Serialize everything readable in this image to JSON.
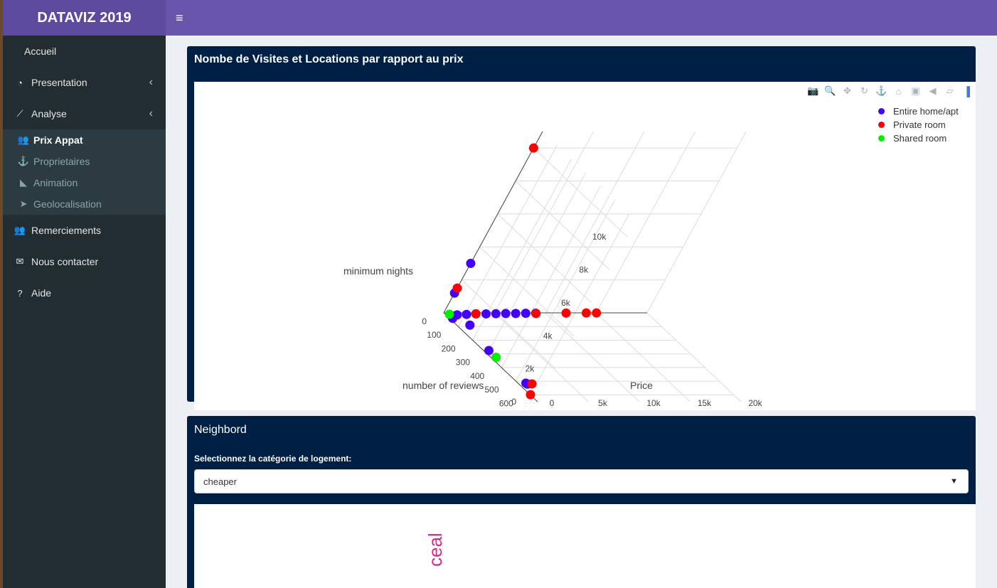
{
  "app": {
    "title": "DATAVIZ 2019"
  },
  "sidebar": {
    "items": [
      {
        "label": "Accueil",
        "icon": "apple-icon"
      },
      {
        "label": "Presentation",
        "icon": "dashboard-icon"
      },
      {
        "label": "Analyse",
        "icon": "line-chart-icon"
      },
      {
        "label": "Remerciements",
        "icon": "users-icon"
      },
      {
        "label": "Nous contacter",
        "icon": "envelope-icon"
      },
      {
        "label": "Aide",
        "icon": "question-icon"
      }
    ],
    "subitems": [
      {
        "label": "Prix Appat",
        "icon": "users-icon",
        "active": true
      },
      {
        "label": "Proprietaires",
        "icon": "anchor-icon"
      },
      {
        "label": "Animation",
        "icon": "area-chart-icon"
      },
      {
        "label": "Geolocalisation",
        "icon": "location-arrow-icon"
      }
    ]
  },
  "box1": {
    "title": "Nombe de Visites et Locations par rapport au prix"
  },
  "chart_data": {
    "type": "scatter",
    "title": "",
    "axes": {
      "x": {
        "label": "Price",
        "ticks": [
          "0",
          "5k",
          "10k",
          "15k",
          "20k"
        ]
      },
      "y": {
        "label": "number of reviews",
        "ticks": [
          "0",
          "100",
          "200",
          "300",
          "400",
          "500",
          "600"
        ]
      },
      "z": {
        "label": "minimum nights",
        "ticks": [
          "0",
          "2k",
          "4k",
          "6k",
          "8k",
          "10k"
        ]
      }
    },
    "series": [
      {
        "name": "Entire home/apt",
        "color": "#4400ff",
        "points": [
          [
            0,
            0,
            3000
          ],
          [
            0,
            0,
            1200
          ],
          [
            100,
            50,
            80
          ],
          [
            200,
            40,
            60
          ],
          [
            500,
            30,
            50
          ],
          [
            1000,
            20,
            40
          ],
          [
            2000,
            15,
            30
          ],
          [
            3000,
            10,
            25
          ],
          [
            4000,
            10,
            20
          ],
          [
            5000,
            8,
            15
          ],
          [
            6000,
            6,
            10
          ],
          [
            7000,
            5,
            5
          ],
          [
            8000,
            4,
            5
          ],
          [
            9000,
            3,
            3
          ],
          [
            0,
            150,
            500
          ],
          [
            0,
            300,
            200
          ],
          [
            0,
            550,
            300
          ],
          [
            0,
            560,
            320
          ]
        ]
      },
      {
        "name": "Private room",
        "color": "#ff0000",
        "points": [
          [
            0,
            0,
            10000
          ],
          [
            0,
            0,
            1500
          ],
          [
            3000,
            10,
            20
          ],
          [
            9000,
            5,
            3
          ],
          [
            12000,
            2,
            2
          ],
          [
            14000,
            1,
            1
          ],
          [
            15000,
            1,
            1
          ],
          [
            0,
            600,
            10
          ],
          [
            0,
            580,
            500
          ]
        ]
      },
      {
        "name": "Shared room",
        "color": "#00ee00",
        "points": [
          [
            0,
            350,
            200
          ],
          [
            200,
            20,
            80
          ]
        ]
      }
    ]
  },
  "box2": {
    "title": "Neighbord",
    "select_label": "Selectionnez la catégorie de logement:",
    "select_value": "cheaper",
    "plot_text": "ceal"
  }
}
